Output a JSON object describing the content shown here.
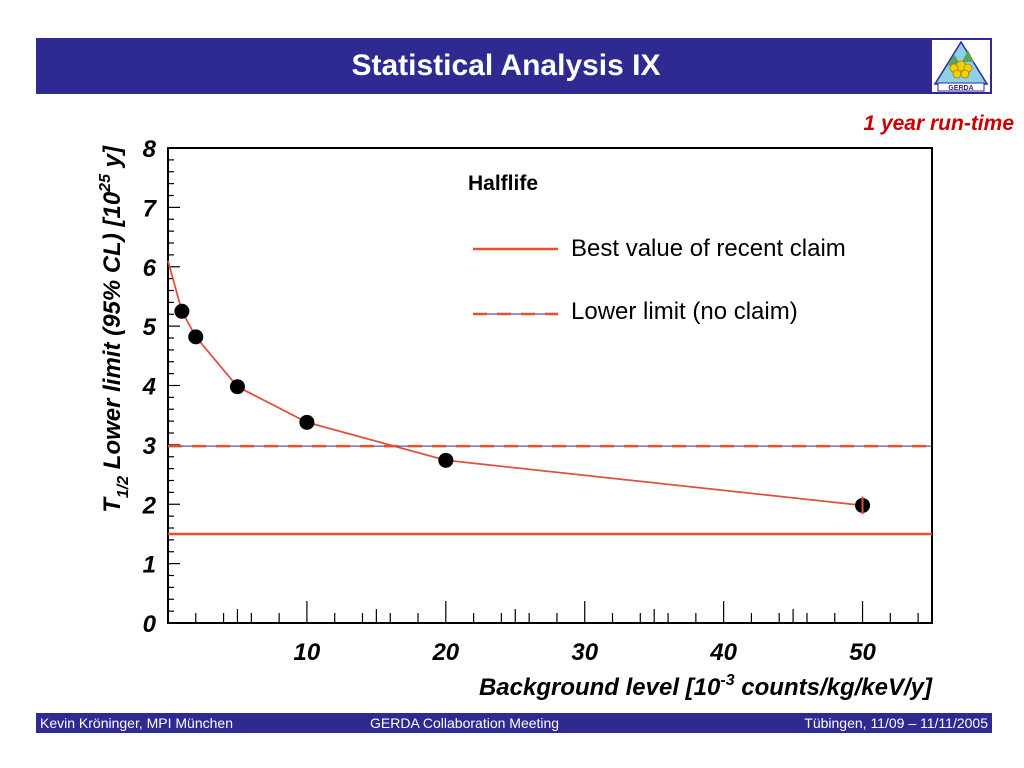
{
  "header": {
    "title": "Statistical Analysis IX",
    "logo_text": "GERDA"
  },
  "subtitle": "1 year run-time",
  "footer": {
    "left": "Kevin Kröninger, MPI München",
    "center": "GERDA Collaboration Meeting",
    "right": "Tübingen, 11/09 – 11/11/2005"
  },
  "colors": {
    "brand_bar": "#2e2a92",
    "subtitle": "#cc0000",
    "curve": "#e05040",
    "hline_solid": "#e8502a",
    "hline_dashed": "#e8502a",
    "points": "#000000"
  },
  "chart_data": {
    "type": "line",
    "legend_title": "Halflife",
    "legend_position": "top-right",
    "ylabel_main": "T",
    "ylabel_sub": "1/2",
    "ylabel_rest": " Lower limit (95% CL) [10",
    "ylabel_exp": "25",
    "ylabel_end": " y]",
    "xlabel_main": "Background level [10",
    "xlabel_exp": "-3",
    "xlabel_end": " counts/kg/keV/y]",
    "xlim": [
      0,
      55
    ],
    "ylim": [
      0,
      8
    ],
    "x_ticks": [
      10,
      20,
      30,
      40,
      50
    ],
    "y_ticks": [
      0,
      1,
      2,
      3,
      4,
      5,
      6,
      7,
      8
    ],
    "series": [
      {
        "x": [
          1,
          2,
          5,
          10,
          20,
          50
        ],
        "y": [
          5.25,
          4.82,
          3.98,
          3.38,
          2.74,
          1.98
        ]
      }
    ],
    "curve_start": {
      "x": 0,
      "y": 6.1
    },
    "horizontal_lines": [
      {
        "name": "Best value of recent claim",
        "y": 1.5,
        "style": "solid"
      },
      {
        "name": "Lower limit (no claim)",
        "y": 2.98,
        "style": "dashed"
      }
    ]
  }
}
